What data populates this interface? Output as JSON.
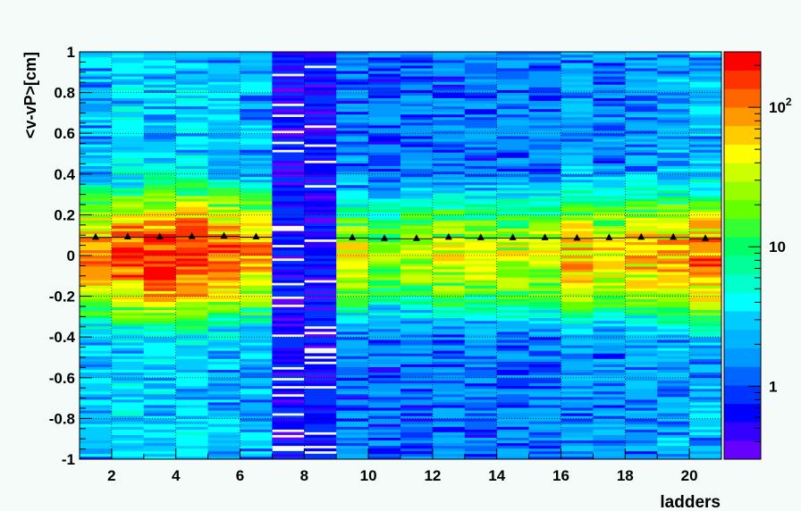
{
  "chart_data": {
    "type": "heatmap",
    "title": "",
    "xlabel": "ladders",
    "ylabel": "<v-vP>[cm]",
    "xlim": [
      1,
      21
    ],
    "ylim": [
      -1,
      1
    ],
    "grid": true,
    "x_ticks": [
      2,
      4,
      6,
      8,
      10,
      12,
      14,
      16,
      18,
      20
    ],
    "y_ticks": [
      -1,
      -0.8,
      -0.6,
      -0.4,
      -0.2,
      0,
      0.2,
      0.4,
      0.6,
      0.8,
      1
    ],
    "z_scale": "log",
    "z_ticks": [
      {
        "base": "1",
        "exp": "",
        "value": 1
      },
      {
        "base": "10",
        "exp": "",
        "value": 10
      },
      {
        "base": "10",
        "exp": "2",
        "value": 100
      }
    ],
    "zlim": [
      0.3,
      250
    ],
    "ladders": [
      1,
      2,
      3,
      4,
      5,
      6,
      7,
      8,
      9,
      10,
      11,
      12,
      13,
      14,
      15,
      16,
      17,
      18,
      19,
      20
    ],
    "peak_counts": [
      90,
      160,
      220,
      210,
      130,
      90,
      0,
      0,
      40,
      25,
      30,
      40,
      35,
      40,
      40,
      70,
      55,
      70,
      80,
      120
    ],
    "background_counts": [
      2.5,
      3,
      3,
      3,
      2.5,
      2.5,
      0.6,
      0.6,
      1.5,
      1.2,
      1.3,
      1.4,
      1.4,
      1.5,
      1.5,
      2,
      1.7,
      2,
      2.2,
      2.5
    ],
    "mean_residual": [
      0.088,
      0.09,
      0.09,
      0.092,
      0.094,
      0.09,
      null,
      null,
      0.086,
      0.082,
      0.082,
      0.088,
      0.086,
      0.086,
      0.086,
      0.084,
      0.086,
      0.088,
      0.088,
      0.082
    ],
    "palette": [
      "#6600ff",
      "#3300ff",
      "#0000ff",
      "#0033ff",
      "#0066ff",
      "#0099ff",
      "#00b3ff",
      "#00ccff",
      "#00ffff",
      "#00ffcc",
      "#00ff99",
      "#00ff66",
      "#33ff33",
      "#66ff00",
      "#99ff00",
      "#ccff00",
      "#ffff00",
      "#ffcc00",
      "#ff9900",
      "#ff6600",
      "#ff3300",
      "#ff0000"
    ]
  }
}
